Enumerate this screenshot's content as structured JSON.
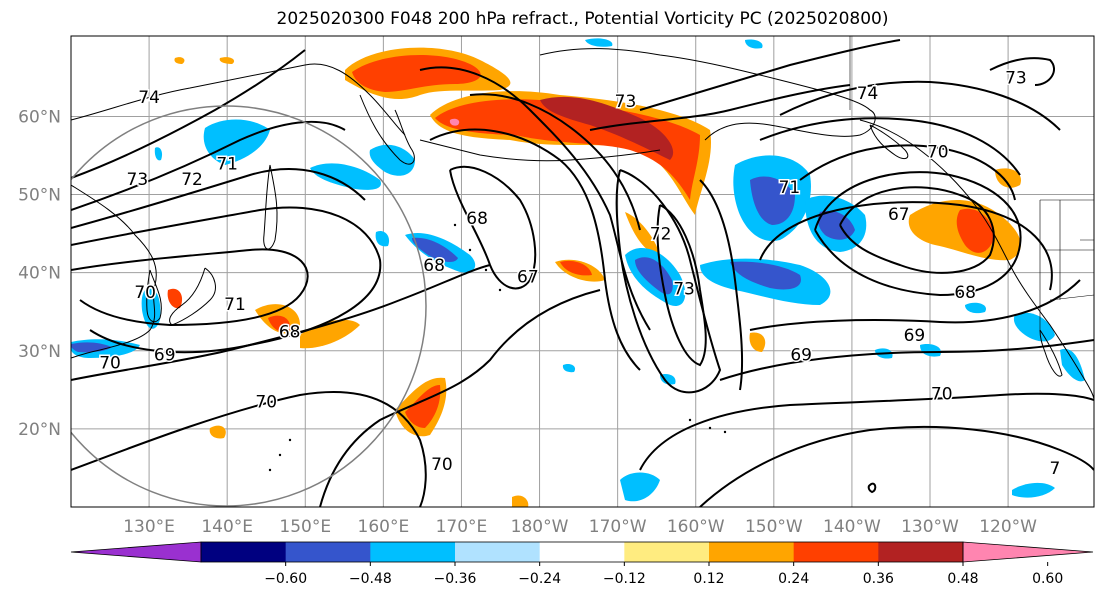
{
  "title": "2025020300 F048 200 hPa refract., Potential Vorticity PC (2025020800)",
  "lat_labels": [
    {
      "text": "60°N",
      "lat": 60
    },
    {
      "text": "50°N",
      "lat": 50
    },
    {
      "text": "40°N",
      "lat": 40
    },
    {
      "text": "30°N",
      "lat": 30
    },
    {
      "text": "20°N",
      "lat": 20
    }
  ],
  "lon_labels": [
    {
      "text": "130°E",
      "lon": 130
    },
    {
      "text": "140°E",
      "lon": 140
    },
    {
      "text": "150°E",
      "lon": 150
    },
    {
      "text": "160°E",
      "lon": 160
    },
    {
      "text": "170°E",
      "lon": 170
    },
    {
      "text": "180°W",
      "lon": 180
    },
    {
      "text": "170°W",
      "lon": 190
    },
    {
      "text": "160°W",
      "lon": 200
    },
    {
      "text": "150°W",
      "lon": 210
    },
    {
      "text": "140°W",
      "lon": 220
    },
    {
      "text": "130°W",
      "lon": 230
    },
    {
      "text": "120°W",
      "lon": 240
    }
  ],
  "contour_labels": [
    {
      "text": "74",
      "lon": 130,
      "lat": 62.5
    },
    {
      "text": "73",
      "lon": 128.5,
      "lat": 52
    },
    {
      "text": "72",
      "lon": 135.5,
      "lat": 52
    },
    {
      "text": "71",
      "lon": 140,
      "lat": 54
    },
    {
      "text": "70",
      "lon": 129.5,
      "lat": 37.5
    },
    {
      "text": "71",
      "lon": 141,
      "lat": 36
    },
    {
      "text": "68",
      "lon": 148,
      "lat": 32.5
    },
    {
      "text": "69",
      "lon": 132,
      "lat": 29.5
    },
    {
      "text": "70",
      "lon": 125,
      "lat": 28.5
    },
    {
      "text": "70",
      "lon": 145,
      "lat": 23.5
    },
    {
      "text": "70",
      "lon": 167.5,
      "lat": 15.5
    },
    {
      "text": "68",
      "lon": 172,
      "lat": 47
    },
    {
      "text": "68",
      "lon": 166.5,
      "lat": 41
    },
    {
      "text": "67",
      "lon": 178.5,
      "lat": 39.5
    },
    {
      "text": "72",
      "lon": 195.5,
      "lat": 45
    },
    {
      "text": "73",
      "lon": 198.5,
      "lat": 38
    },
    {
      "text": "73",
      "lon": 191,
      "lat": 62
    },
    {
      "text": "74",
      "lon": 222,
      "lat": 63
    },
    {
      "text": "70",
      "lon": 231,
      "lat": 55.5
    },
    {
      "text": "71",
      "lon": 212,
      "lat": 51
    },
    {
      "text": "67",
      "lon": 226,
      "lat": 47.5
    },
    {
      "text": "68",
      "lon": 234.5,
      "lat": 37.5
    },
    {
      "text": "69",
      "lon": 228,
      "lat": 32
    },
    {
      "text": "69",
      "lon": 213.5,
      "lat": 29.5
    },
    {
      "text": "70",
      "lon": 231.5,
      "lat": 24.5
    },
    {
      "text": "73",
      "lon": 241,
      "lat": 65
    },
    {
      "text": "7",
      "lon": 246,
      "lat": 15
    }
  ],
  "colorbar": {
    "ticks": [
      "−0.60",
      "−0.48",
      "−0.36",
      "−0.24",
      "−0.12",
      "0.12",
      "0.24",
      "0.36",
      "0.48",
      "0.60"
    ],
    "colors": [
      "#9a30d0",
      "#000080",
      "#3555cc",
      "#00bfff",
      "#b0e2ff",
      "#ffffff",
      "#ffec80",
      "#ffa500",
      "#ff4000",
      "#b22222",
      "#ff85b0"
    ]
  }
}
